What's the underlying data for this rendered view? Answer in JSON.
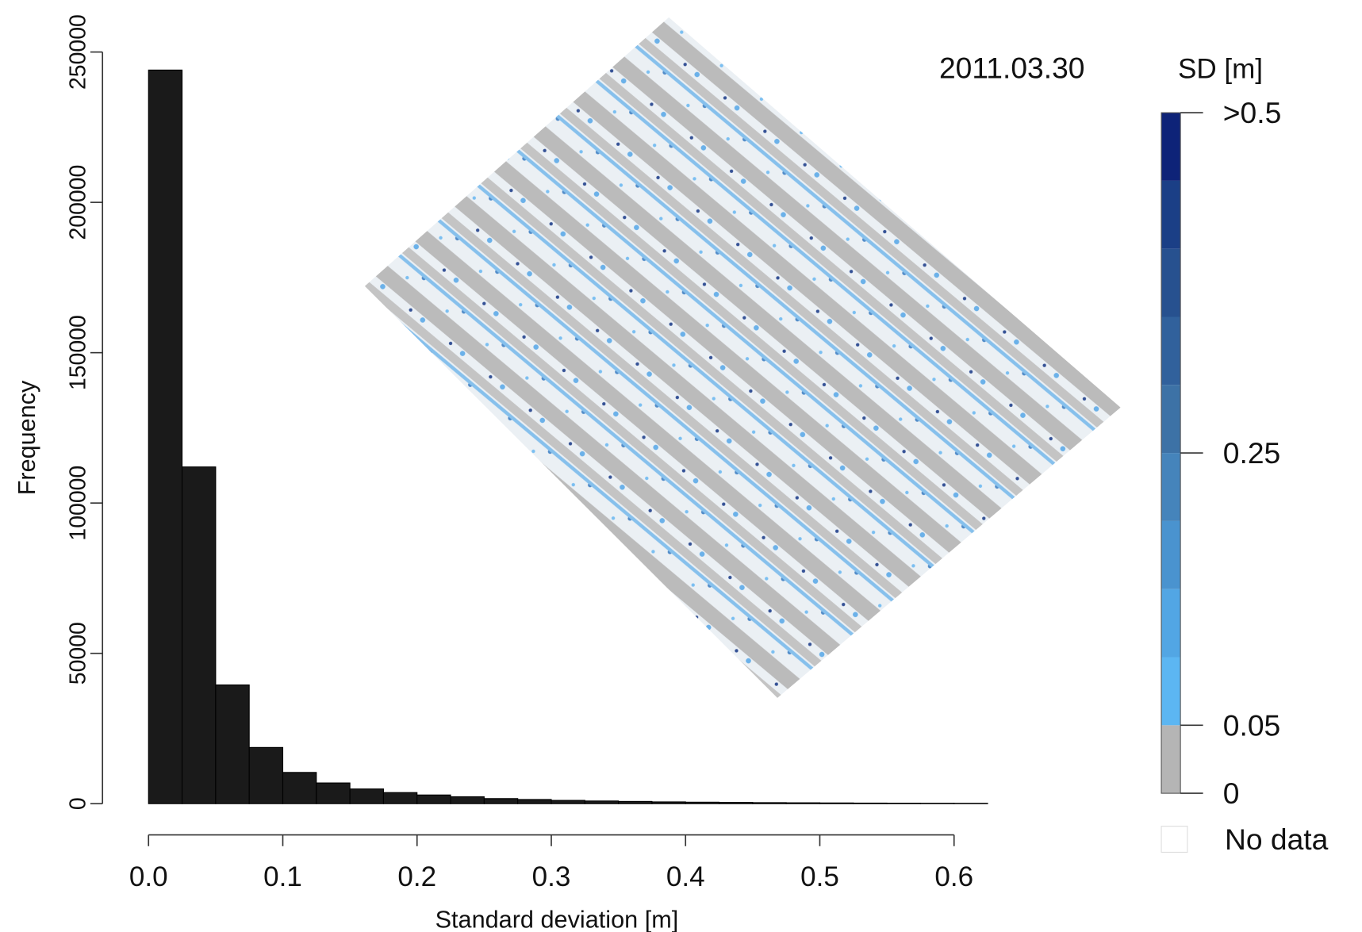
{
  "chart_data": {
    "type": "histogram",
    "xlabel": "Standard deviation [m]",
    "ylabel": "Frequency",
    "bins": [
      0,
      0.025,
      0.05,
      0.075,
      0.1,
      0.125,
      0.15,
      0.175,
      0.2,
      0.225,
      0.25,
      0.275,
      0.3,
      0.325,
      0.35,
      0.375,
      0.4,
      0.425,
      0.45,
      0.475,
      0.5,
      0.525,
      0.55,
      0.575,
      0.6,
      0.625
    ],
    "values": [
      244000,
      112000,
      39500,
      18700,
      10400,
      6900,
      4900,
      3700,
      2900,
      2300,
      1700,
      1400,
      1100,
      900,
      750,
      600,
      500,
      420,
      350,
      300,
      250,
      200,
      170,
      150,
      130
    ],
    "color": "#1a1a1a",
    "xlim": [
      0,
      0.625
    ],
    "xticks": [
      {
        "value": 0,
        "label": "0.0"
      },
      0.1,
      0.2,
      0.3,
      0.4,
      0.5,
      0.6
    ],
    "ylim": [
      0,
      250000
    ],
    "yticks": [
      0,
      50000,
      100000,
      150000,
      200000,
      250000
    ],
    "map": {
      "date": "2011.03.30",
      "colorbar": {
        "title": "SD [m]",
        "levels": [
          0,
          0.05,
          0.1,
          0.15,
          0.2,
          0.25,
          0.3,
          0.35,
          0.4,
          0.45,
          0.5
        ],
        "colors": [
          "#b5b5b5",
          "#5cb6f2",
          "#52a6e4",
          "#4a93cf",
          "#4584bb",
          "#3d72a6",
          "#31619c",
          "#27518f",
          "#1b3f86",
          "#0e2378"
        ],
        "ticks": [
          0,
          0.05,
          0.25,
          {
            "value": 0.5,
            "label": ">0.5"
          }
        ],
        "nodata": "No data"
      }
    }
  }
}
